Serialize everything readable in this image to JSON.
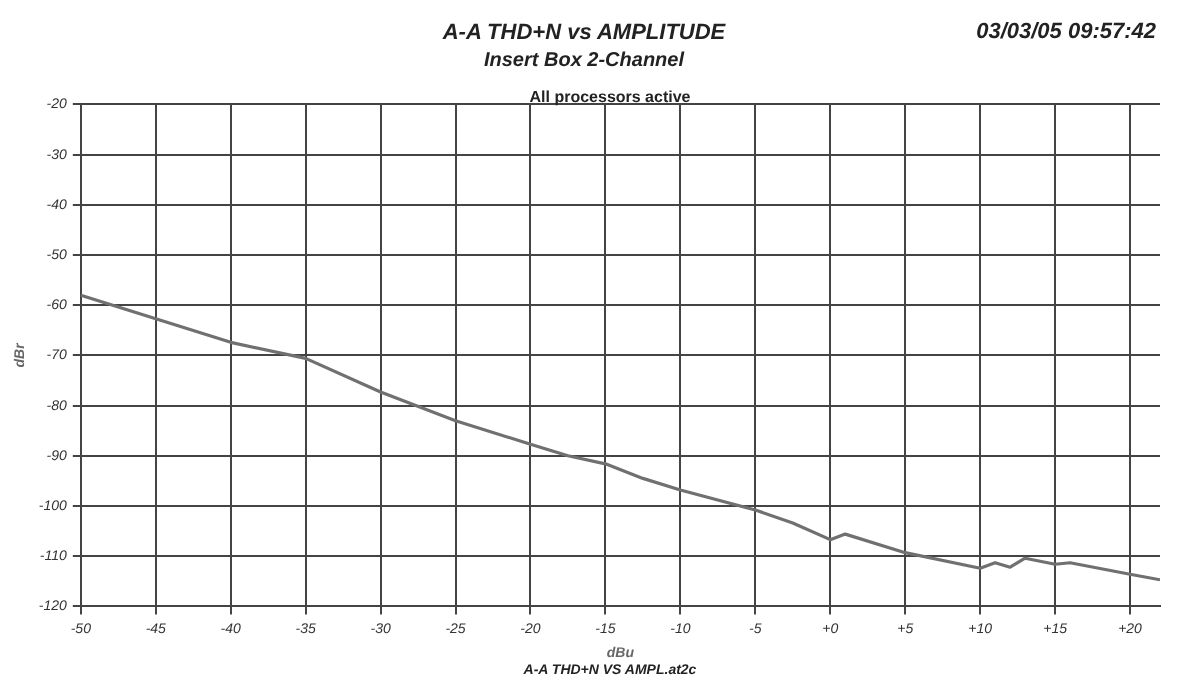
{
  "chart_data": {
    "type": "line",
    "title": "A-A THD+N vs AMPLITUDE",
    "subtitle": "Insert Box 2-Channel",
    "xlabel": "dBu",
    "ylabel": "dBr",
    "annotations": [
      "03/03/05 09:57:42",
      "All processors active",
      "A-A THD+N VS AMPL.at2c"
    ],
    "x": [
      -50,
      -40,
      -35,
      -30,
      -25,
      -20,
      -17.5,
      -15,
      -12.5,
      -10,
      -5,
      -2.5,
      0,
      1,
      5,
      10,
      11,
      12,
      13,
      15,
      16,
      20,
      22
    ],
    "series": [
      {
        "color": "#707070",
        "values": [
          -58,
          -67.4,
          -70.6,
          -77.3,
          -83,
          -87.7,
          -90,
          -91.6,
          -94.5,
          -96.8,
          -100.8,
          -103.4,
          -106.7,
          -105.6,
          -109.3,
          -112.4,
          -111.3,
          -112.2,
          -110.4,
          -111.6,
          -111.3,
          -113.6,
          -114.7
        ]
      }
    ],
    "xlim": [
      -50,
      22
    ],
    "ylim": [
      -120,
      -20
    ],
    "xticks": [
      -50,
      -45,
      -40,
      -35,
      -30,
      -25,
      -20,
      -15,
      -10,
      -5,
      {
        "value": 0,
        "label": "+0"
      },
      {
        "value": 5,
        "label": "+5"
      },
      {
        "value": 10,
        "label": "+10"
      },
      {
        "value": 15,
        "label": "+15"
      },
      {
        "value": 20,
        "label": "+20"
      }
    ],
    "yticks": [
      -120,
      -110,
      -100,
      -90,
      -80,
      -70,
      -60,
      -50,
      -40,
      -30,
      -20
    ],
    "grid": true,
    "legend": false,
    "marker": "none",
    "line_style": "solid"
  }
}
